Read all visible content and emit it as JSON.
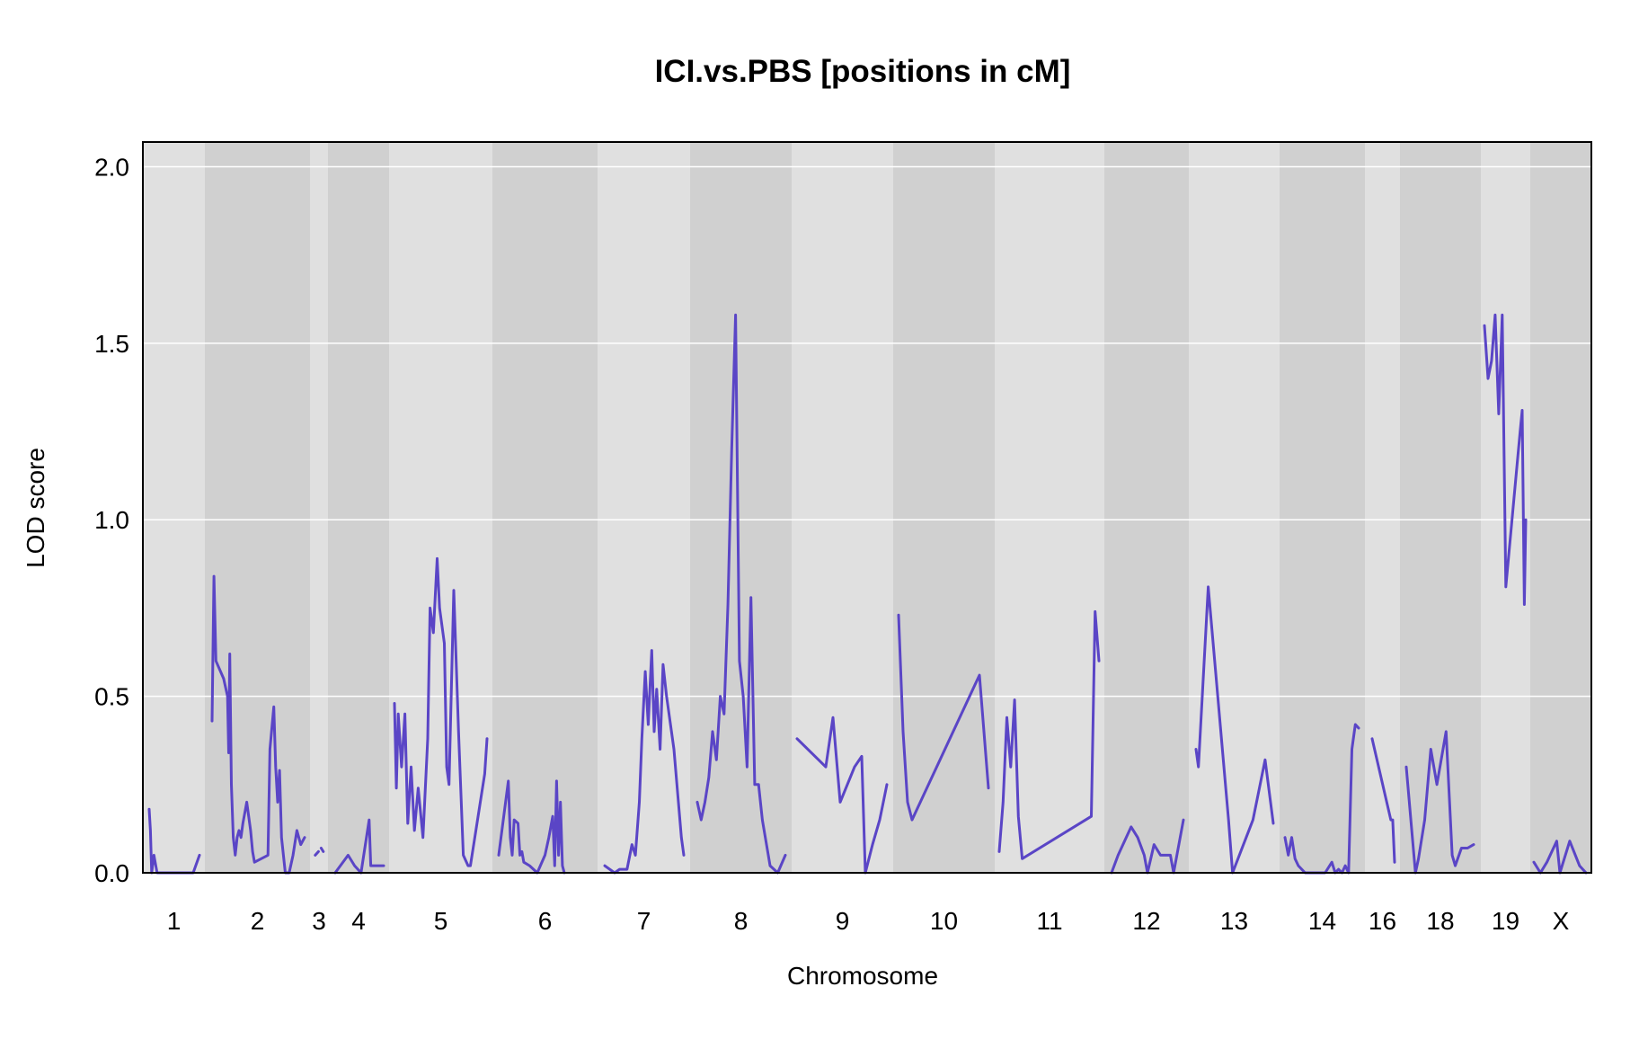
{
  "chart_data": {
    "type": "line",
    "title": "ICI.vs.PBS [positions in cM]",
    "xlabel": "Chromosome",
    "ylabel": "LOD score",
    "ylim": [
      0,
      2.07
    ],
    "yticks": [
      0.0,
      0.5,
      1.0,
      1.5,
      2.0
    ],
    "ytick_labels": [
      "0.0",
      "0.5",
      "1.0",
      "1.5",
      "2.0"
    ],
    "grid": true,
    "line_color": "#5a45c6",
    "band_colors": [
      "#e0e0e0",
      "#d0d0d0"
    ],
    "chromosomes": [
      {
        "label": "1",
        "segments": [
          [
            [
              0.0,
              0.18
            ],
            [
              0.4,
              0.12
            ],
            [
              0.8,
              0.0
            ],
            [
              1.5,
              0.05
            ],
            [
              2.5,
              0.0
            ],
            [
              14.0,
              0.0
            ],
            [
              16.0,
              0.05
            ]
          ]
        ]
      },
      {
        "label": "2",
        "segments": [
          [
            [
              0.0,
              0.43
            ],
            [
              0.5,
              0.84
            ],
            [
              1.0,
              0.6
            ],
            [
              3.0,
              0.55
            ],
            [
              4.0,
              0.5
            ],
            [
              4.3,
              0.34
            ],
            [
              4.6,
              0.62
            ],
            [
              5.0,
              0.25
            ],
            [
              5.5,
              0.1
            ],
            [
              6.0,
              0.05
            ],
            [
              6.5,
              0.1
            ],
            [
              7.0,
              0.12
            ],
            [
              7.5,
              0.1
            ],
            [
              8.0,
              0.14
            ],
            [
              9.0,
              0.2
            ],
            [
              10.0,
              0.12
            ],
            [
              10.5,
              0.06
            ],
            [
              11.0,
              0.03
            ],
            [
              14.5,
              0.05
            ],
            [
              15.0,
              0.35
            ],
            [
              16.0,
              0.47
            ],
            [
              16.5,
              0.3
            ],
            [
              17.0,
              0.2
            ],
            [
              17.5,
              0.29
            ],
            [
              18.0,
              0.1
            ],
            [
              19.0,
              0.0
            ],
            [
              20.0,
              0.0
            ],
            [
              21.0,
              0.05
            ],
            [
              22.0,
              0.12
            ],
            [
              23.0,
              0.08
            ],
            [
              24.0,
              0.1
            ]
          ]
        ]
      },
      {
        "label": "3",
        "segments": [
          [
            [
              0.3,
              0.05
            ],
            [
              0.9,
              0.06
            ]
          ],
          [
            [
              1.4,
              0.07
            ],
            [
              1.8,
              0.06
            ]
          ]
        ]
      },
      {
        "label": "4",
        "segments": [
          [
            [
              0.0,
              0.0
            ],
            [
              4.0,
              0.05
            ],
            [
              6.0,
              0.02
            ],
            [
              8.0,
              0.0
            ],
            [
              10.0,
              0.12
            ],
            [
              10.5,
              0.15
            ],
            [
              11.0,
              0.02
            ],
            [
              15.0,
              0.02
            ]
          ]
        ]
      },
      {
        "label": "5",
        "segments": [
          [
            [
              0.0,
              0.48
            ],
            [
              0.4,
              0.24
            ],
            [
              0.8,
              0.45
            ],
            [
              1.5,
              0.3
            ],
            [
              2.2,
              0.45
            ],
            [
              2.8,
              0.14
            ],
            [
              3.5,
              0.3
            ],
            [
              4.2,
              0.12
            ],
            [
              5.0,
              0.24
            ],
            [
              6.0,
              0.1
            ],
            [
              7.0,
              0.38
            ],
            [
              7.5,
              0.75
            ],
            [
              8.2,
              0.68
            ],
            [
              9.0,
              0.89
            ],
            [
              9.5,
              0.75
            ],
            [
              10.5,
              0.65
            ],
            [
              11.0,
              0.3
            ],
            [
              11.5,
              0.25
            ],
            [
              12.5,
              0.8
            ],
            [
              13.5,
              0.4
            ],
            [
              14.5,
              0.05
            ],
            [
              15.5,
              0.02
            ],
            [
              16.0,
              0.02
            ],
            [
              19.0,
              0.28
            ],
            [
              19.5,
              0.38
            ]
          ]
        ]
      },
      {
        "label": "6",
        "segments": [
          [
            [
              0.0,
              0.05
            ],
            [
              2.5,
              0.26
            ],
            [
              3.0,
              0.1
            ],
            [
              3.5,
              0.05
            ],
            [
              4.0,
              0.15
            ],
            [
              5.0,
              0.14
            ],
            [
              5.5,
              0.05
            ],
            [
              6.0,
              0.06
            ],
            [
              6.5,
              0.03
            ],
            [
              8.0,
              0.02
            ],
            [
              10.0,
              0.0
            ],
            [
              12.0,
              0.05
            ],
            [
              13.0,
              0.1
            ],
            [
              14.0,
              0.16
            ],
            [
              14.5,
              0.02
            ],
            [
              15.0,
              0.26
            ],
            [
              15.5,
              0.05
            ],
            [
              16.0,
              0.2
            ],
            [
              16.5,
              0.02
            ],
            [
              17.0,
              0.0
            ]
          ]
        ]
      },
      {
        "label": "7",
        "segments": [
          [
            [
              0.0,
              0.02
            ],
            [
              2.0,
              0.0
            ],
            [
              3.0,
              0.01
            ],
            [
              4.5,
              0.01
            ],
            [
              5.5,
              0.08
            ],
            [
              6.2,
              0.05
            ],
            [
              7.0,
              0.2
            ],
            [
              7.5,
              0.38
            ],
            [
              8.2,
              0.57
            ],
            [
              8.8,
              0.42
            ],
            [
              9.5,
              0.63
            ],
            [
              10.0,
              0.4
            ],
            [
              10.5,
              0.52
            ],
            [
              11.2,
              0.35
            ],
            [
              11.8,
              0.59
            ],
            [
              12.5,
              0.5
            ],
            [
              14.0,
              0.35
            ],
            [
              15.5,
              0.1
            ],
            [
              16.0,
              0.05
            ]
          ]
        ]
      },
      {
        "label": "8",
        "segments": [
          [
            [
              0.0,
              0.2
            ],
            [
              0.5,
              0.15
            ],
            [
              1.0,
              0.2
            ],
            [
              1.5,
              0.27
            ],
            [
              2.0,
              0.4
            ],
            [
              2.5,
              0.32
            ],
            [
              3.0,
              0.5
            ],
            [
              3.5,
              0.45
            ],
            [
              4.0,
              0.76
            ],
            [
              4.5,
              1.2
            ],
            [
              5.0,
              1.58
            ],
            [
              5.5,
              0.6
            ],
            [
              6.0,
              0.5
            ],
            [
              6.5,
              0.3
            ],
            [
              7.0,
              0.78
            ],
            [
              7.5,
              0.25
            ],
            [
              8.0,
              0.25
            ],
            [
              8.5,
              0.15
            ],
            [
              9.5,
              0.02
            ],
            [
              10.5,
              0.0
            ],
            [
              11.5,
              0.05
            ]
          ]
        ]
      },
      {
        "label": "9",
        "segments": [
          [
            [
              0.0,
              0.38
            ],
            [
              4.0,
              0.3
            ],
            [
              5.0,
              0.44
            ],
            [
              6.0,
              0.2
            ],
            [
              7.0,
              0.25
            ],
            [
              8.0,
              0.3
            ],
            [
              9.0,
              0.33
            ],
            [
              9.5,
              0.0
            ],
            [
              10.5,
              0.08
            ],
            [
              11.5,
              0.15
            ],
            [
              12.5,
              0.25
            ]
          ]
        ]
      },
      {
        "label": "10",
        "segments": [
          [
            [
              0.0,
              0.73
            ],
            [
              0.5,
              0.4
            ],
            [
              1.0,
              0.2
            ],
            [
              1.5,
              0.15
            ],
            [
              9.0,
              0.56
            ],
            [
              10.0,
              0.24
            ]
          ]
        ]
      },
      {
        "label": "11",
        "segments": [
          [
            [
              0.0,
              0.06
            ],
            [
              0.5,
              0.2
            ],
            [
              1.0,
              0.44
            ],
            [
              1.5,
              0.3
            ],
            [
              2.0,
              0.49
            ],
            [
              2.5,
              0.16
            ],
            [
              3.0,
              0.04
            ],
            [
              12.0,
              0.16
            ],
            [
              12.5,
              0.74
            ],
            [
              13.0,
              0.6
            ]
          ]
        ]
      },
      {
        "label": "12",
        "segments": [
          [
            [
              0.0,
              0.0
            ],
            [
              1.0,
              0.05
            ],
            [
              3.0,
              0.13
            ],
            [
              4.0,
              0.1
            ],
            [
              5.0,
              0.05
            ],
            [
              5.5,
              0.0
            ],
            [
              6.5,
              0.08
            ],
            [
              7.5,
              0.05
            ],
            [
              8.0,
              0.05
            ],
            [
              9.0,
              0.05
            ],
            [
              9.5,
              0.0
            ],
            [
              11.0,
              0.15
            ]
          ]
        ]
      },
      {
        "label": "13",
        "segments": [
          [
            [
              0.0,
              0.35
            ],
            [
              0.3,
              0.3
            ],
            [
              1.5,
              0.81
            ],
            [
              4.0,
              0.15
            ],
            [
              4.5,
              0.0
            ],
            [
              7.0,
              0.15
            ],
            [
              8.5,
              0.32
            ],
            [
              9.5,
              0.14
            ]
          ]
        ]
      },
      {
        "label": "14",
        "segments": [
          [
            [
              0.0,
              0.1
            ],
            [
              0.5,
              0.05
            ],
            [
              1.0,
              0.1
            ],
            [
              1.5,
              0.04
            ],
            [
              2.0,
              0.02
            ],
            [
              3.0,
              0.0
            ],
            [
              6.0,
              0.0
            ],
            [
              7.0,
              0.03
            ],
            [
              7.5,
              0.0
            ],
            [
              8.0,
              0.01
            ],
            [
              8.5,
              0.0
            ],
            [
              9.0,
              0.02
            ],
            [
              9.5,
              0.0
            ],
            [
              10.0,
              0.35
            ],
            [
              10.5,
              0.42
            ],
            [
              11.0,
              0.41
            ]
          ]
        ]
      },
      {
        "label": "16",
        "segments": [
          [
            [
              0.0,
              0.38
            ],
            [
              5.0,
              0.15
            ],
            [
              5.5,
              0.15
            ],
            [
              6.0,
              0.03
            ]
          ]
        ]
      },
      {
        "label": "18",
        "segments": [
          [
            [
              0.0,
              0.3
            ],
            [
              1.5,
              0.0
            ],
            [
              2.0,
              0.04
            ],
            [
              3.0,
              0.15
            ],
            [
              4.0,
              0.35
            ],
            [
              5.0,
              0.25
            ],
            [
              6.5,
              0.4
            ],
            [
              7.5,
              0.05
            ],
            [
              8.0,
              0.02
            ],
            [
              9.0,
              0.07
            ],
            [
              10.0,
              0.07
            ],
            [
              11.0,
              0.08
            ]
          ]
        ]
      },
      {
        "label": "19",
        "segments": [
          [
            [
              0.0,
              1.55
            ],
            [
              0.5,
              1.4
            ],
            [
              1.0,
              1.45
            ],
            [
              1.5,
              1.58
            ],
            [
              2.0,
              1.3
            ],
            [
              2.5,
              1.58
            ],
            [
              3.0,
              0.81
            ],
            [
              5.0,
              1.25
            ],
            [
              5.3,
              1.31
            ],
            [
              5.6,
              0.76
            ],
            [
              5.8,
              1.0
            ]
          ]
        ]
      },
      {
        "label": "X",
        "segments": [
          [
            [
              0.0,
              0.03
            ],
            [
              1.0,
              0.0
            ],
            [
              2.0,
              0.03
            ],
            [
              3.5,
              0.09
            ],
            [
              4.0,
              0.0
            ],
            [
              5.5,
              0.09
            ],
            [
              7.0,
              0.02
            ],
            [
              8.0,
              0.0
            ]
          ]
        ]
      }
    ]
  }
}
